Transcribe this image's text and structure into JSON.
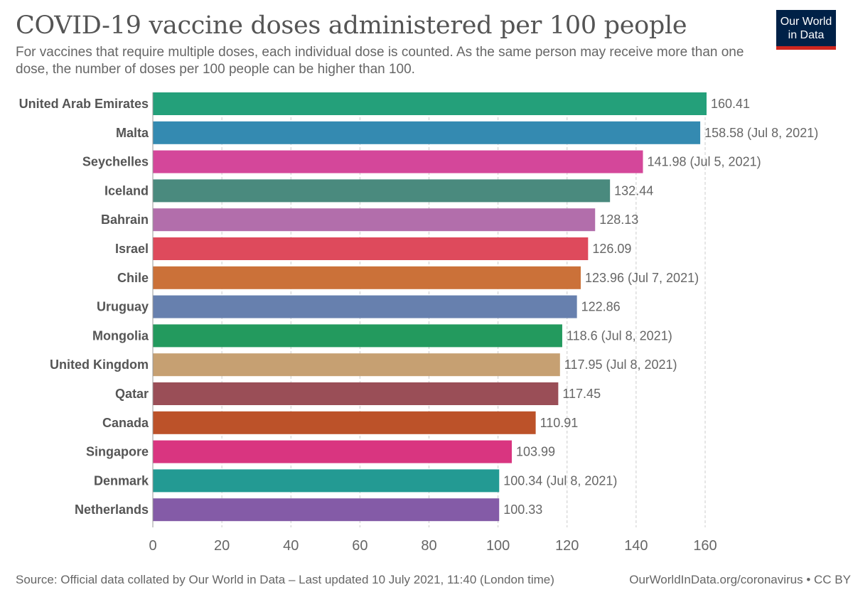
{
  "header": {
    "title": "COVID-19 vaccine doses administered per 100 people",
    "subtitle": "For vaccines that require multiple doses, each individual dose is counted. As the same person may receive more than one dose, the number of doses per 100 people can be higher than 100."
  },
  "logo": {
    "line1": "Our World",
    "line2": "in Data",
    "colors": {
      "background": "#002147",
      "accent": "#ce261e"
    }
  },
  "footer": {
    "source": "Source: Official data collated by Our World in Data – Last updated 10 July 2021, 11:40 (London time)",
    "url": "OurWorldInData.org/coronavirus • CC BY"
  },
  "chart_data": {
    "type": "bar",
    "orientation": "horizontal",
    "title": "COVID-19 vaccine doses administered per 100 people",
    "xlim": [
      0,
      160
    ],
    "xticks": [
      0,
      20,
      40,
      60,
      80,
      100,
      120,
      140,
      160
    ],
    "grid": true,
    "categories": [
      "United Arab Emirates",
      "Malta",
      "Seychelles",
      "Iceland",
      "Bahrain",
      "Israel",
      "Chile",
      "Uruguay",
      "Mongolia",
      "United Kingdom",
      "Qatar",
      "Canada",
      "Singapore",
      "Denmark",
      "Netherlands"
    ],
    "values": [
      160.41,
      158.58,
      141.98,
      132.44,
      128.13,
      126.09,
      123.96,
      122.86,
      118.6,
      117.95,
      117.45,
      110.91,
      103.99,
      100.34,
      100.33
    ],
    "labels": [
      "160.41",
      "158.58 (Jul 8, 2021)",
      "141.98 (Jul 5, 2021)",
      "132.44",
      "128.13",
      "126.09",
      "123.96 (Jul 7, 2021)",
      "122.86",
      "118.6 (Jul 8, 2021)",
      "117.95 (Jul 8, 2021)",
      "117.45",
      "110.91",
      "103.99",
      "100.34 (Jul 8, 2021)",
      "100.33"
    ],
    "colors": [
      "#24a07a",
      "#348ab1",
      "#d4479a",
      "#4a8a7e",
      "#b26eab",
      "#de4a5c",
      "#cb7139",
      "#6780ae",
      "#239a5e",
      "#c6a072",
      "#9a4e57",
      "#bc5229",
      "#d93580",
      "#239a93",
      "#845ba7"
    ]
  }
}
